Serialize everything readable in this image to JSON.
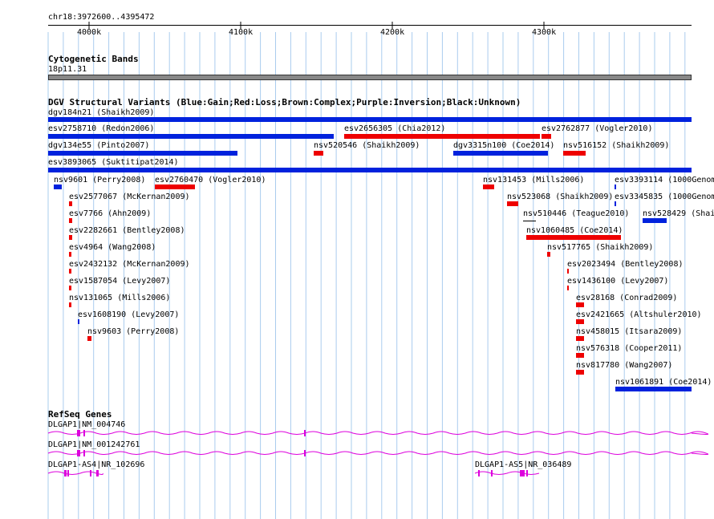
{
  "ruler": {
    "range": "chr18:3972600..4395472",
    "ticks": [
      "4000k",
      "4100k",
      "4200k",
      "4300k"
    ]
  },
  "tracks": {
    "cytobands": {
      "title": "Cytogenetic Bands",
      "band": "18p11.31"
    },
    "dgv": {
      "title": "DGV Structural Variants (Blue:Gain;Red:Loss;Brown:Complex;Purple:Inversion;Black:Unknown)"
    },
    "refseq": {
      "title": "RefSeq Genes"
    }
  },
  "variants": [
    {
      "label": "dgv184n21 (Shaikh2009)",
      "color": "blue"
    },
    {
      "label": "esv2758710 (Redon2006)",
      "color": "blue"
    },
    {
      "label": "esv2656305 (Chia2012)",
      "color": "red"
    },
    {
      "label": "esv2762877 (Vogler2010)",
      "color": "red"
    },
    {
      "label": "dgv134e55 (Pinto2007)",
      "color": "blue"
    },
    {
      "label": "nsv520546 (Shaikh2009)",
      "color": "red"
    },
    {
      "label": "dgv3315n100 (Coe2014)",
      "color": "blue"
    },
    {
      "label": "nsv516152 (Shaikh2009)",
      "color": "red"
    },
    {
      "label": "esv3893065 (Suktitipat2014)",
      "color": "blue"
    },
    {
      "label": "nsv9601 (Perry2008)",
      "color": "blue"
    },
    {
      "label": "esv2760470 (Vogler2010)",
      "color": "red"
    },
    {
      "label": "nsv131453 (Mills2006)",
      "color": "red"
    },
    {
      "label": "esv3393114 (1000Genom",
      "color": "blue"
    },
    {
      "label": "esv2577067 (McKernan2009)",
      "color": "red"
    },
    {
      "label": "nsv523068 (Shaikh2009)",
      "color": "red"
    },
    {
      "label": "esv3345835 (1000Genom",
      "color": "blue"
    },
    {
      "label": "esv7766 (Ahn2009)",
      "color": "red"
    },
    {
      "label": "nsv510446 (Teague2010)",
      "color": "black"
    },
    {
      "label": "nsv528429 (Shai",
      "color": "blue"
    },
    {
      "label": "esv2282661 (Bentley2008)",
      "color": "red"
    },
    {
      "label": "nsv1060485 (Coe2014)",
      "color": "red"
    },
    {
      "label": "esv4964 (Wang2008)",
      "color": "red"
    },
    {
      "label": "nsv517765 (Shaikh2009)",
      "color": "red"
    },
    {
      "label": "esv2432132 (McKernan2009)",
      "color": "red"
    },
    {
      "label": "esv2023494 (Bentley2008)",
      "color": "red"
    },
    {
      "label": "esv1587054 (Levy2007)",
      "color": "red"
    },
    {
      "label": "esv1436100 (Levy2007)",
      "color": "red"
    },
    {
      "label": "nsv131065 (Mills2006)",
      "color": "red"
    },
    {
      "label": "esv28168 (Conrad2009)",
      "color": "red"
    },
    {
      "label": "esv1608190 (Levy2007)",
      "color": "blue"
    },
    {
      "label": "esv2421665 (Altshuler2010)",
      "color": "red"
    },
    {
      "label": "nsv9603 (Perry2008)",
      "color": "red"
    },
    {
      "label": "nsv458015 (Itsara2009)",
      "color": "red"
    },
    {
      "label": "nsv576318 (Cooper2011)",
      "color": "red"
    },
    {
      "label": "nsv817780 (Wang2007)",
      "color": "red"
    },
    {
      "label": "nsv1061891 (Coe2014)",
      "color": "blue"
    }
  ],
  "genes": [
    {
      "label": "DLGAP1|NM_004746"
    },
    {
      "label": "DLGAP1|NM_001242761"
    },
    {
      "label": "DLGAP1-AS4|NR_102696"
    },
    {
      "label": "DLGAP1-AS5|NR_036489"
    }
  ],
  "colors": {
    "gain": "#0022dd",
    "loss": "#ee0000",
    "unknown": "#000000",
    "gene": "#dd00dd",
    "grid": "#aaccee",
    "band": "#888888"
  }
}
